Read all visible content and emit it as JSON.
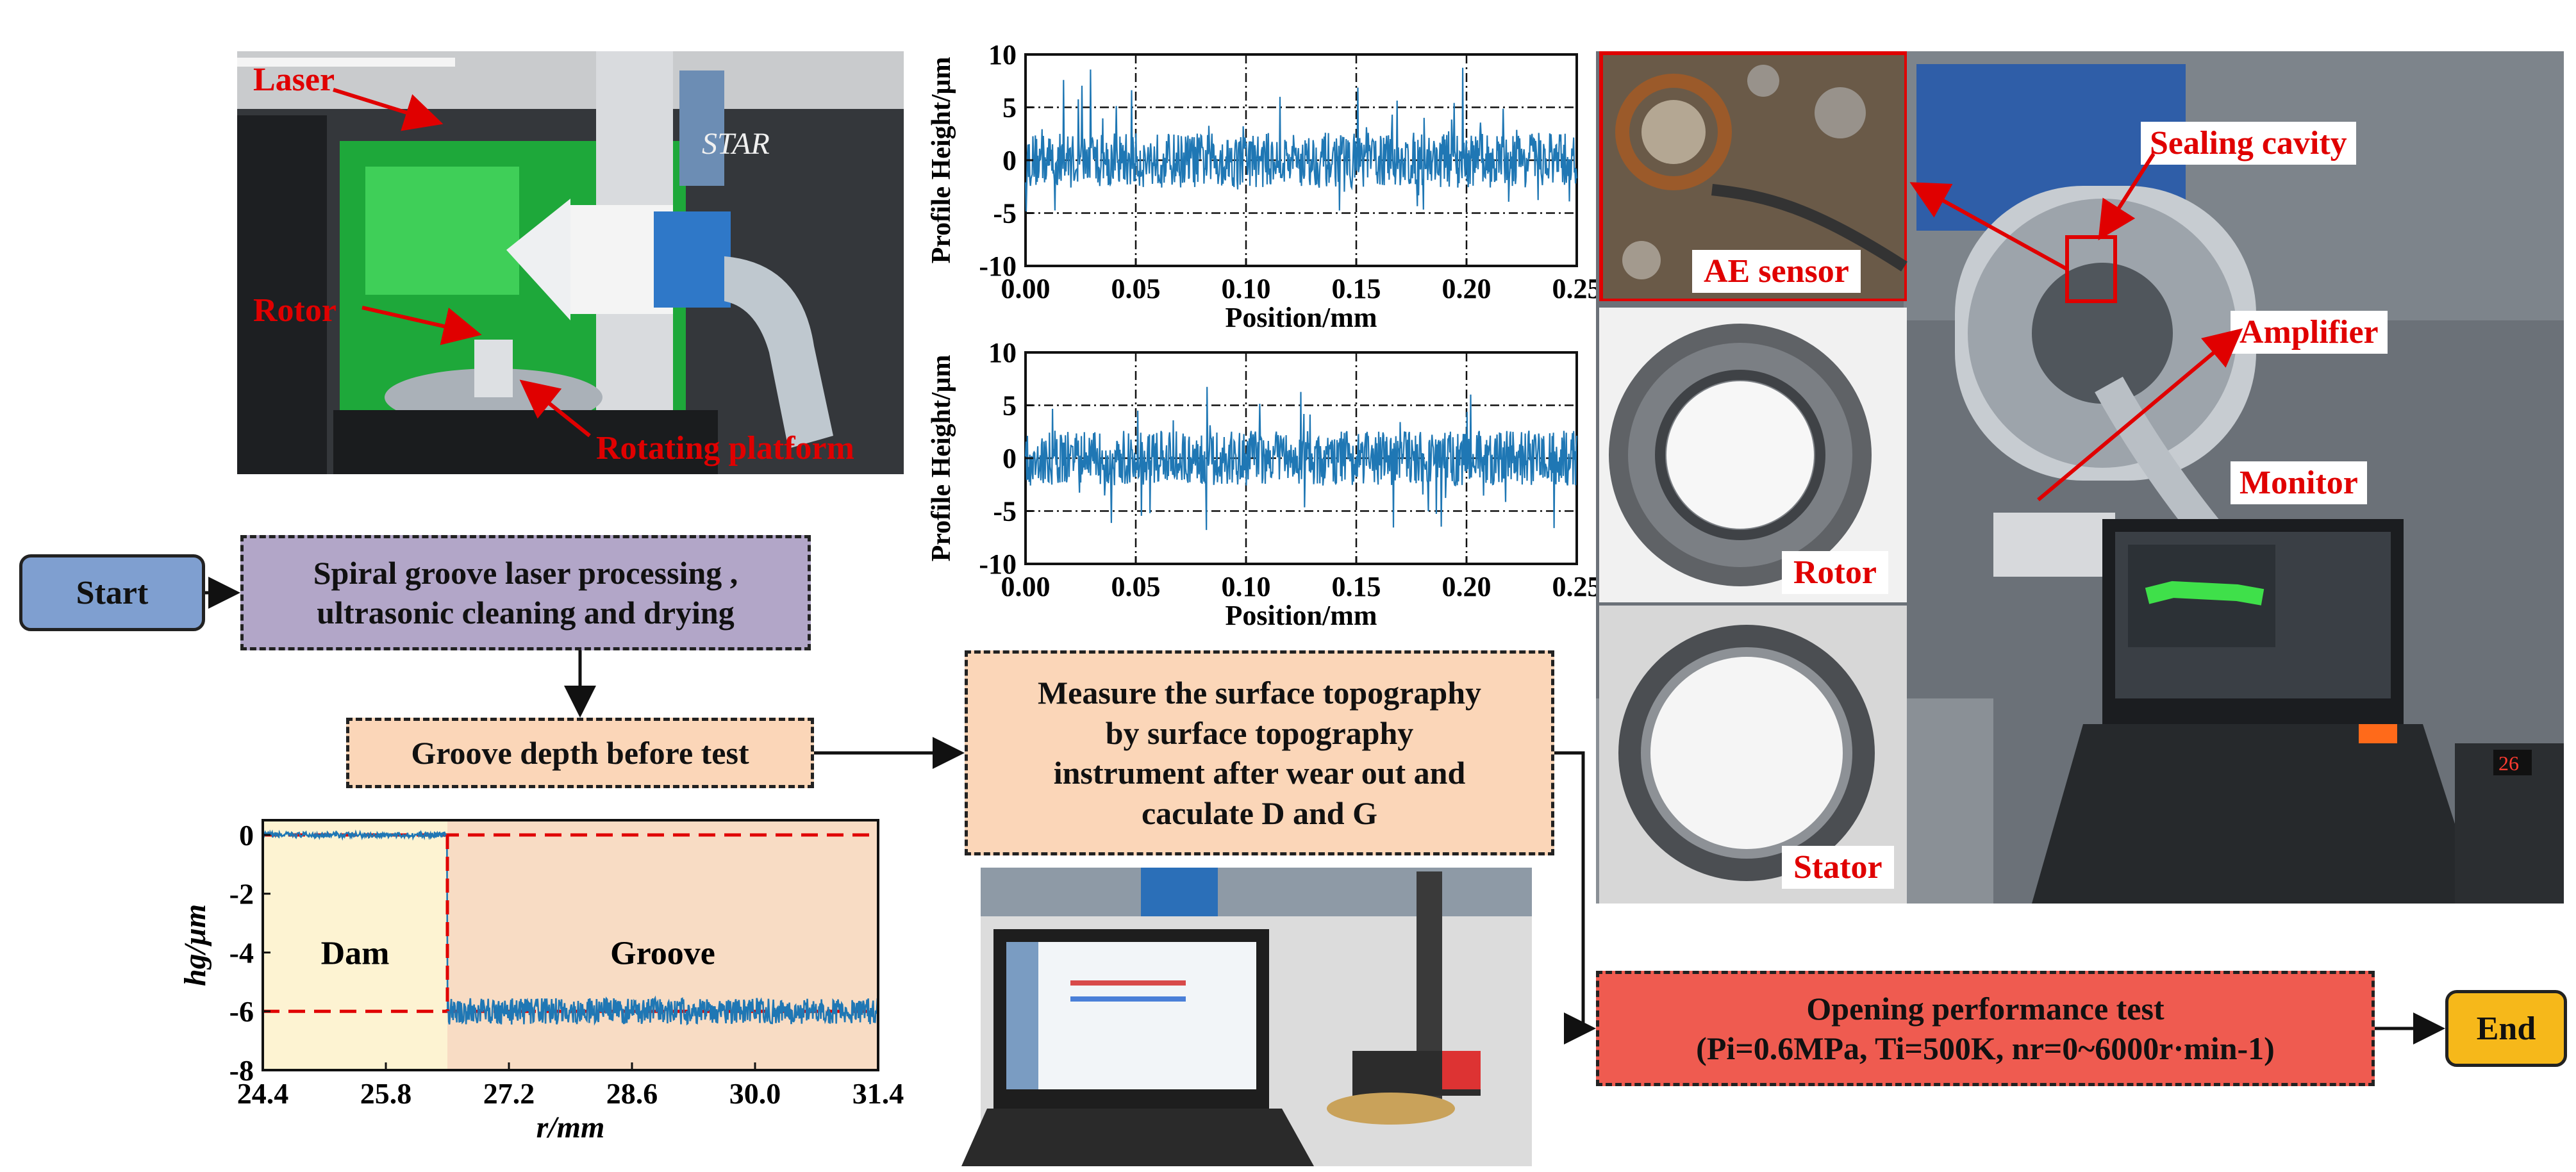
{
  "flow": {
    "start": "Start",
    "step1": [
      "Spiral groove laser processing ,",
      "ultrasonic cleaning and drying"
    ],
    "step2": "Groove depth before test",
    "step3": [
      "Measure the surface topography",
      "by surface topography",
      "instrument after wear out and",
      "caculate D and G"
    ],
    "step4_title": "Opening performance test",
    "step4_params": "(Pi=0.6MPa, Ti=500K, nr=0~6000r·min-1)",
    "end": "End"
  },
  "photo_labels": {
    "laser": "Laser",
    "rotor_top": "Rotor",
    "rotating_platform": "Rotating platform",
    "ae_sensor": "AE sensor",
    "sealing_cavity": "Sealing cavity",
    "amplifier": "Amplifier",
    "monitor": "Monitor",
    "rotor": "Rotor",
    "stator": "Stator",
    "laser_brand": "STAR"
  },
  "colors": {
    "start_fill": "#7f9fd0",
    "step1_fill": "#b2a6c8",
    "step_peach": "#fbd6b8",
    "step4_fill": "#ef5b50",
    "end_fill": "#f6b81a",
    "signal_blue": "#1f77b4",
    "red": "#e00000"
  },
  "chart_data": [
    {
      "type": "line",
      "xlabel": "Position/mm",
      "ylabel": "Profile Height/μm",
      "xlim": [
        0.0,
        0.25
      ],
      "ylim": [
        -10,
        10
      ],
      "xticks": [
        "0.00",
        "0.05",
        "0.10",
        "0.15",
        "0.20",
        "0.25"
      ],
      "yticks": [
        "10",
        "5",
        "0",
        "-5",
        "-10"
      ],
      "grid": true,
      "noise_range": [
        -5,
        9
      ]
    },
    {
      "type": "line",
      "xlabel": "Position/mm",
      "ylabel": "Profile Height/μm",
      "xlim": [
        0.0,
        0.25
      ],
      "ylim": [
        -10,
        10
      ],
      "xticks": [
        "0.00",
        "0.05",
        "0.10",
        "0.15",
        "0.20",
        "0.25"
      ],
      "yticks": [
        "10",
        "5",
        "0",
        "-5",
        "-10"
      ],
      "grid": true,
      "noise_range": [
        -7,
        7
      ]
    },
    {
      "type": "line",
      "xlabel": "r/mm",
      "ylabel": "hg/μm",
      "xlim": [
        24.4,
        31.4
      ],
      "ylim": [
        -8,
        0.5
      ],
      "xticks": [
        "24.4",
        "25.8",
        "27.2",
        "28.6",
        "30.0",
        "31.4"
      ],
      "yticks": [
        "0",
        "-2",
        "-4",
        "-6",
        "-8"
      ],
      "regions": [
        {
          "name": "Dam",
          "x": [
            24.4,
            26.5
          ],
          "level": 0,
          "fill": "#fdf3d2"
        },
        {
          "name": "Groove",
          "x": [
            26.5,
            31.4
          ],
          "level": -6,
          "fill": "#f8dcc4"
        }
      ],
      "dashed_levels": [
        0,
        -6
      ],
      "boundary_x": 26.5
    }
  ]
}
